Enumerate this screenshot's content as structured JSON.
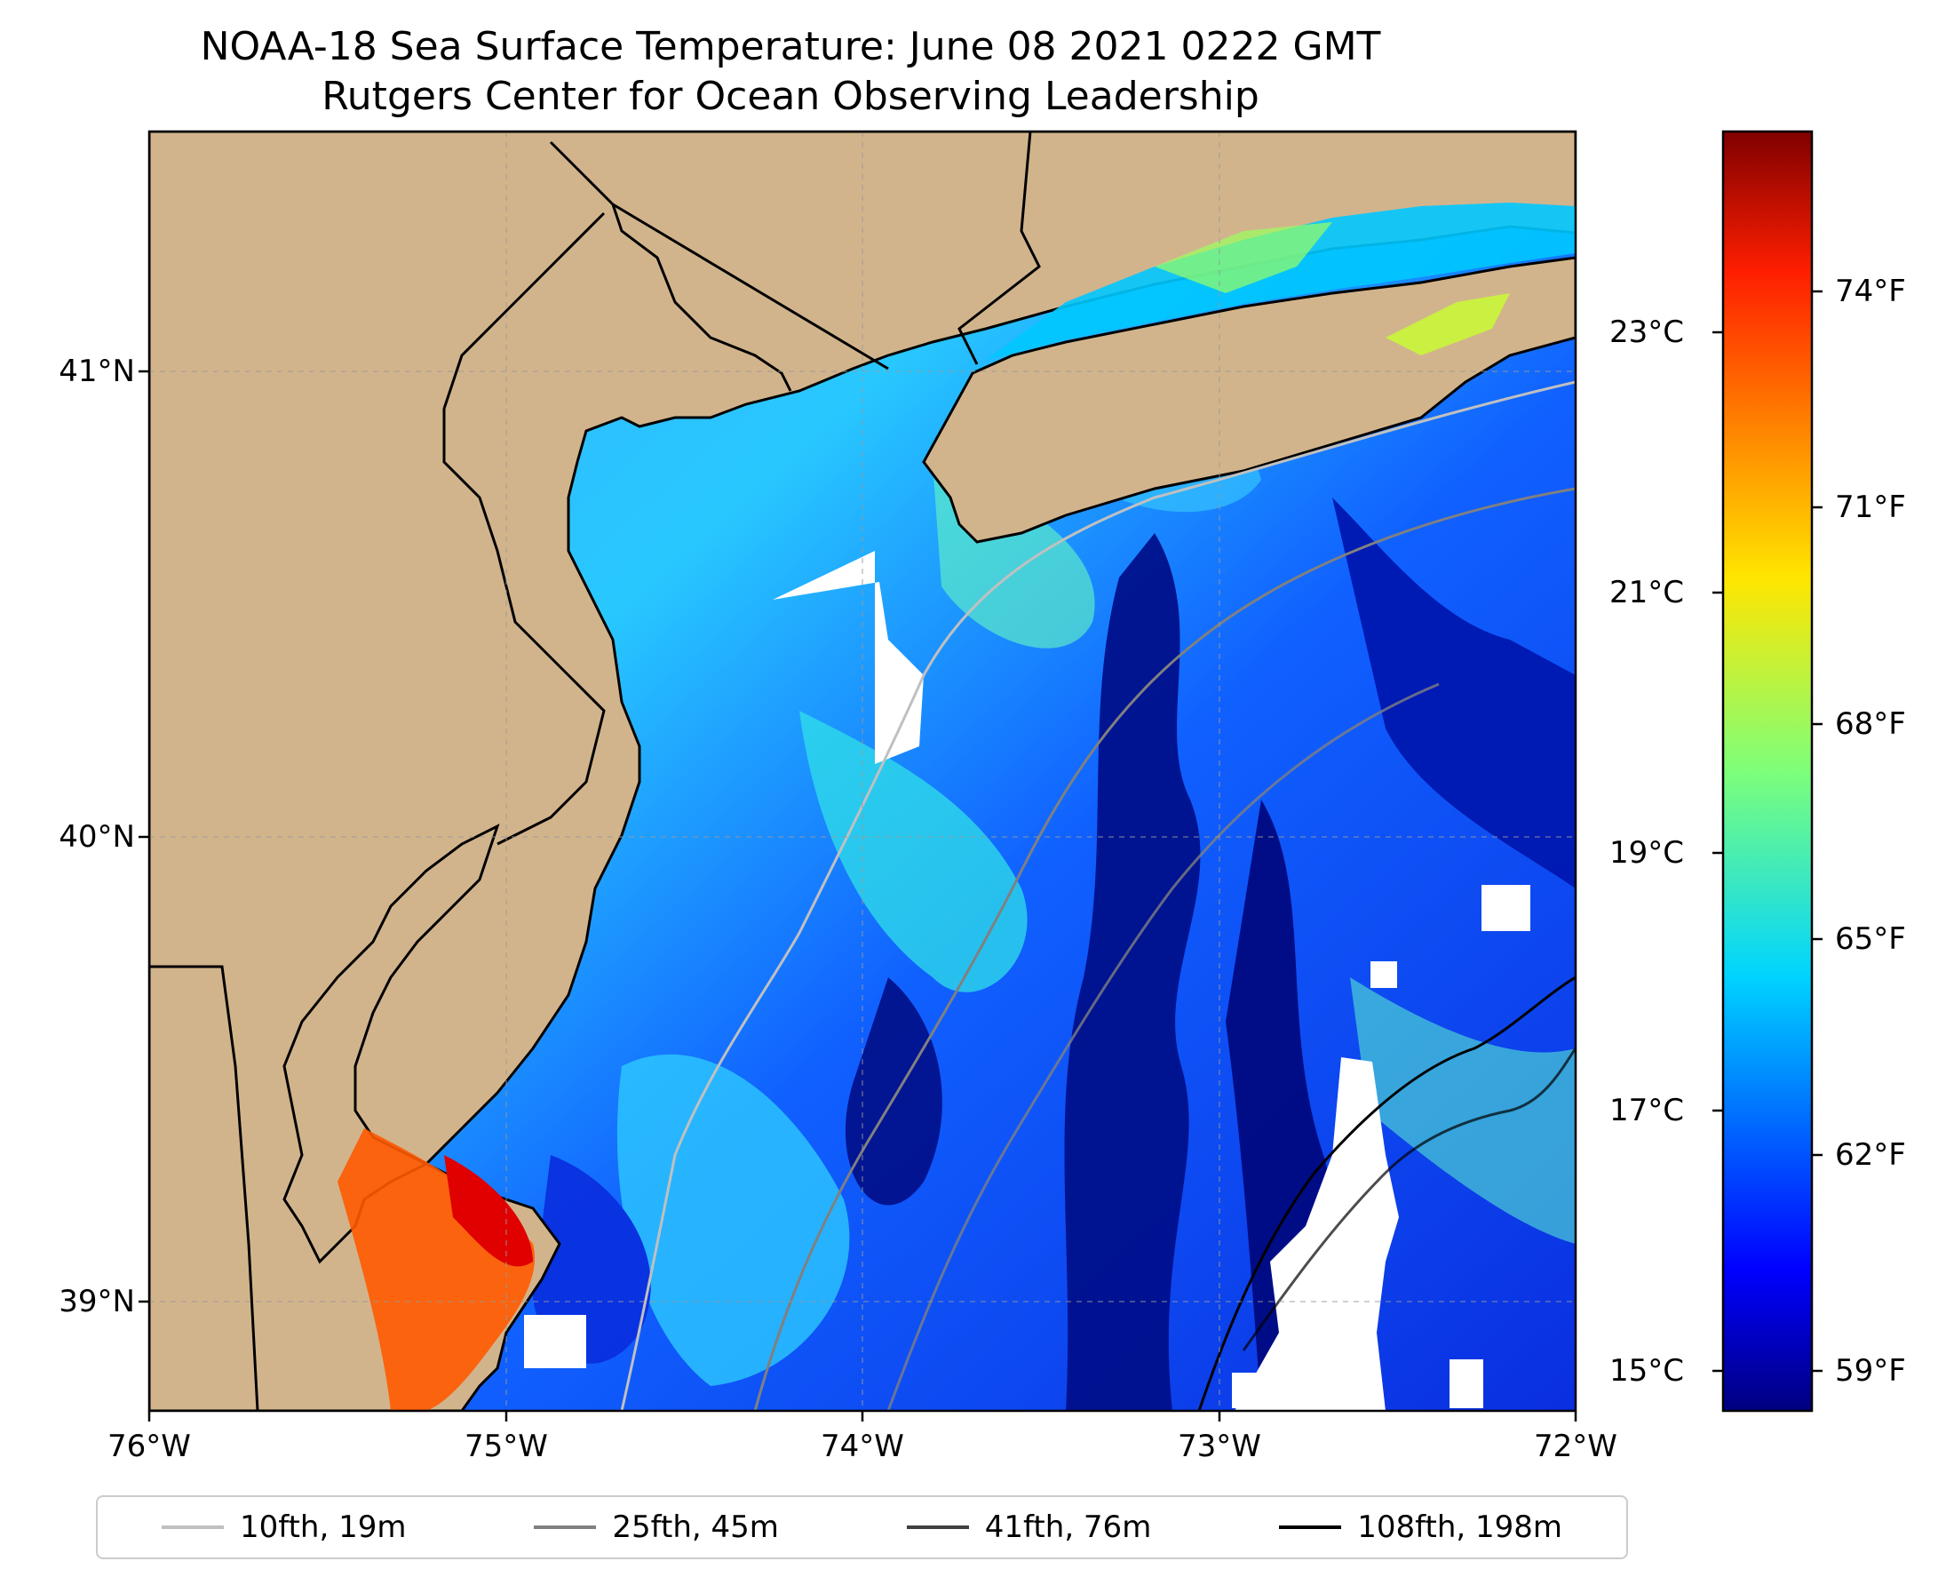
{
  "title": {
    "line1": "NOAA-18 Sea Surface Temperature: June 08 2021 0222 GMT",
    "line2": "Rutgers Center for Ocean Observing Leadership"
  },
  "map": {
    "lon_range": [
      -76,
      -72
    ],
    "lat_range": [
      38.73,
      41.52
    ],
    "x_ticks": [
      "76°W",
      "75°W",
      "74°W",
      "73°W",
      "72°W"
    ],
    "y_ticks": [
      "41°N",
      "40°N",
      "39°N"
    ],
    "land_color": "#d2b48c",
    "grid": true
  },
  "colorbar": {
    "celsius_ticks": [
      "23°C",
      "21°C",
      "19°C",
      "17°C",
      "15°C"
    ],
    "fahrenheit_ticks": [
      "74°F",
      "71°F",
      "68°F",
      "65°F",
      "62°F",
      "59°F"
    ],
    "colormap": "jet"
  },
  "legend": {
    "items": [
      {
        "label": "10fth, 19m",
        "color": "#c0c0c0"
      },
      {
        "label": "25fth, 45m",
        "color": "#808080"
      },
      {
        "label": "41fth, 76m",
        "color": "#404040"
      },
      {
        "label": "108fth, 198m",
        "color": "#000000"
      }
    ]
  }
}
